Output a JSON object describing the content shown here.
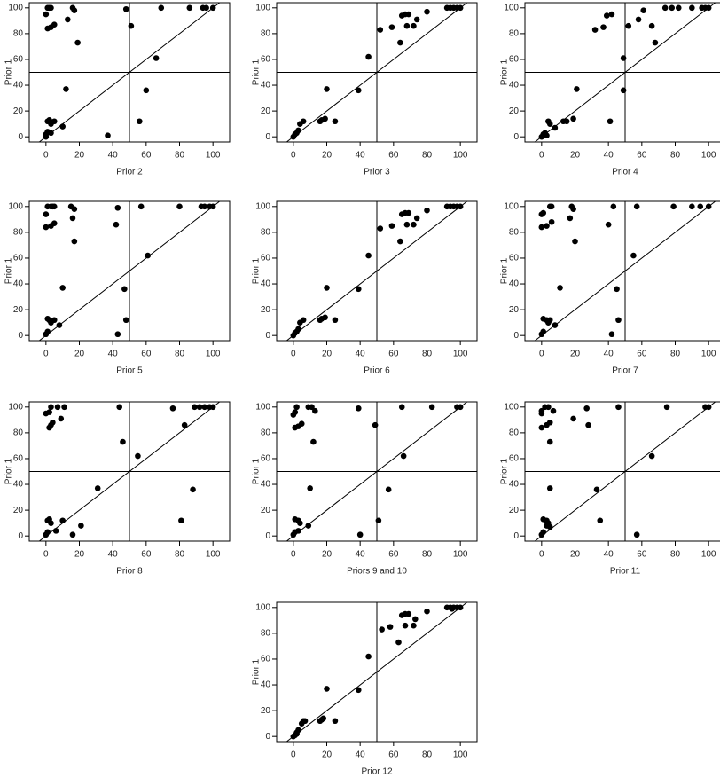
{
  "chart_data": [
    {
      "type": "scatter",
      "x_label": "Prior 2",
      "y_label": "Prior 1",
      "color": "#000000",
      "x": [
        0,
        1,
        2,
        3,
        1,
        3,
        5,
        13,
        16,
        17,
        19,
        12,
        0,
        1,
        1,
        2,
        3,
        5,
        3,
        0,
        10,
        37,
        48,
        51,
        56,
        60,
        66,
        69,
        86,
        94,
        96,
        100
      ],
      "y": [
        95,
        100,
        100,
        100,
        84,
        85,
        87,
        91,
        100,
        98,
        73,
        37,
        2,
        4,
        12,
        13,
        10,
        12,
        3,
        0,
        8,
        1,
        99,
        86,
        12,
        36,
        61,
        100,
        100,
        100,
        100,
        100
      ],
      "xlim": [
        -10,
        110
      ],
      "ylim": [
        -4,
        104
      ],
      "xticks": [
        0,
        20,
        40,
        60,
        80,
        100
      ],
      "yticks": [
        0,
        20,
        40,
        60,
        80,
        100
      ],
      "reference_lines": {
        "x": 50,
        "y": 50,
        "diagonal": true
      }
    },
    {
      "type": "scatter",
      "x_label": "Prior 3",
      "y_label": "Prior 1",
      "color": "#000000",
      "x": [
        0,
        1,
        2,
        3,
        4,
        6,
        16,
        17,
        19,
        20,
        25,
        39,
        45,
        52,
        59,
        64,
        65,
        67,
        69,
        68,
        72,
        74,
        80,
        92,
        94,
        96,
        98,
        100
      ],
      "y": [
        0,
        2,
        3,
        5,
        10,
        12,
        12,
        13,
        14,
        37,
        12,
        36,
        62,
        83,
        85,
        73,
        94,
        95,
        95,
        86,
        86,
        91,
        97,
        100,
        100,
        100,
        100,
        100
      ],
      "xlim": [
        -10,
        110
      ],
      "ylim": [
        -4,
        104
      ],
      "xticks": [
        0,
        20,
        40,
        60,
        80,
        100
      ],
      "yticks": [
        0,
        20,
        40,
        60,
        80,
        100
      ],
      "reference_lines": {
        "x": 50,
        "y": 50,
        "diagonal": true
      }
    },
    {
      "type": "scatter",
      "x_label": "Prior 4",
      "y_label": "Prior 1",
      "color": "#000000",
      "x": [
        0,
        1,
        2,
        3,
        4,
        5,
        8,
        13,
        15,
        19,
        21,
        41,
        49,
        49,
        52,
        32,
        37,
        39,
        42,
        58,
        61,
        66,
        68,
        74,
        78,
        82,
        90,
        96,
        98,
        100
      ],
      "y": [
        0,
        2,
        3,
        1,
        12,
        10,
        7,
        12,
        12,
        14,
        37,
        12,
        61,
        36,
        86,
        83,
        85,
        94,
        95,
        91,
        98,
        86,
        73,
        100,
        100,
        100,
        100,
        100,
        100,
        100
      ],
      "xlim": [
        -10,
        110
      ],
      "ylim": [
        -4,
        104
      ],
      "xticks": [
        0,
        20,
        40,
        60,
        80,
        100
      ],
      "yticks": [
        0,
        20,
        40,
        60,
        80,
        100
      ],
      "reference_lines": {
        "x": 50,
        "y": 50,
        "diagonal": true
      }
    },
    {
      "type": "scatter",
      "x_label": "Prior 5",
      "y_label": "Prior 1",
      "color": "#000000",
      "x": [
        0,
        1,
        3,
        4,
        5,
        0,
        3,
        5,
        15,
        16,
        17,
        17,
        10,
        0,
        1,
        1,
        2,
        3,
        5,
        8,
        42,
        43,
        43,
        47,
        48,
        57,
        61,
        80,
        93,
        95,
        98,
        100
      ],
      "y": [
        94,
        100,
        100,
        100,
        100,
        84,
        85,
        87,
        100,
        91,
        98,
        73,
        37,
        1,
        3,
        13,
        12,
        10,
        12,
        8,
        86,
        99,
        1,
        36,
        12,
        100,
        62,
        100,
        100,
        100,
        100,
        100
      ],
      "xlim": [
        -10,
        110
      ],
      "ylim": [
        -4,
        104
      ],
      "xticks": [
        0,
        20,
        40,
        60,
        80,
        100
      ],
      "yticks": [
        0,
        20,
        40,
        60,
        80,
        100
      ],
      "reference_lines": {
        "x": 50,
        "y": 50,
        "diagonal": true
      }
    },
    {
      "type": "scatter",
      "x_label": "Prior 6",
      "y_label": "Prior 1",
      "color": "#000000",
      "x": [
        0,
        1,
        2,
        3,
        4,
        6,
        16,
        17,
        19,
        20,
        25,
        39,
        45,
        52,
        59,
        64,
        65,
        67,
        69,
        68,
        72,
        74,
        80,
        92,
        94,
        96,
        98,
        100
      ],
      "y": [
        0,
        2,
        3,
        5,
        10,
        12,
        12,
        13,
        14,
        37,
        12,
        36,
        62,
        83,
        85,
        73,
        94,
        95,
        95,
        86,
        86,
        91,
        97,
        100,
        100,
        100,
        100,
        100
      ],
      "xlim": [
        -10,
        110
      ],
      "ylim": [
        -4,
        104
      ],
      "xticks": [
        0,
        20,
        40,
        60,
        80,
        100
      ],
      "yticks": [
        0,
        20,
        40,
        60,
        80,
        100
      ],
      "reference_lines": {
        "x": 50,
        "y": 50,
        "diagonal": true
      }
    },
    {
      "type": "scatter",
      "x_label": "Prior 7",
      "y_label": "Prior 1",
      "color": "#000000",
      "x": [
        0,
        1,
        5,
        6,
        0,
        3,
        6,
        18,
        19,
        17,
        20,
        11,
        0,
        1,
        1,
        3,
        4,
        5,
        8,
        40,
        43,
        42,
        45,
        46,
        57,
        55,
        79,
        90,
        95,
        100
      ],
      "y": [
        94,
        95,
        100,
        100,
        84,
        85,
        88,
        100,
        98,
        91,
        73,
        37,
        1,
        3,
        13,
        12,
        10,
        12,
        8,
        86,
        100,
        1,
        36,
        12,
        100,
        62,
        100,
        100,
        100,
        100
      ],
      "xlim": [
        -10,
        110
      ],
      "ylim": [
        -4,
        104
      ],
      "xticks": [
        0,
        20,
        40,
        60,
        80,
        100
      ],
      "yticks": [
        0,
        20,
        40,
        60,
        80,
        100
      ],
      "reference_lines": {
        "x": 50,
        "y": 50,
        "diagonal": true
      }
    },
    {
      "type": "scatter",
      "x_label": "Prior 8",
      "y_label": "Prior 1",
      "color": "#000000",
      "x": [
        0,
        2,
        3,
        7,
        11,
        2,
        3,
        4,
        9,
        44,
        46,
        55,
        76,
        83,
        89,
        92,
        95,
        98,
        100,
        31,
        88,
        81,
        0,
        1,
        1,
        2,
        3,
        6,
        10,
        16,
        21
      ],
      "y": [
        95,
        96,
        100,
        100,
        100,
        84,
        86,
        88,
        91,
        100,
        73,
        62,
        99,
        86,
        100,
        100,
        100,
        100,
        100,
        37,
        36,
        12,
        1,
        3,
        12,
        13,
        10,
        4,
        12,
        1,
        8
      ],
      "xlim": [
        -10,
        110
      ],
      "ylim": [
        -4,
        104
      ],
      "xticks": [
        0,
        20,
        40,
        60,
        80,
        100
      ],
      "yticks": [
        0,
        20,
        40,
        60,
        80,
        100
      ],
      "reference_lines": {
        "x": 50,
        "y": 50,
        "diagonal": true
      }
    },
    {
      "type": "scatter",
      "x_label": "Priors 9 and 10",
      "y_label": "Prior 1",
      "color": "#000000",
      "x": [
        0,
        1,
        2,
        9,
        11,
        13,
        1,
        3,
        5,
        12,
        10,
        39,
        49,
        57,
        51,
        66,
        40,
        65,
        83,
        98,
        100,
        0,
        1,
        1,
        3,
        4,
        3,
        9
      ],
      "y": [
        94,
        96,
        100,
        100,
        100,
        97,
        84,
        85,
        87,
        73,
        37,
        99,
        86,
        36,
        12,
        62,
        1,
        100,
        100,
        100,
        100,
        1,
        3,
        13,
        12,
        10,
        4,
        8
      ],
      "xlim": [
        -10,
        110
      ],
      "ylim": [
        -4,
        104
      ],
      "xticks": [
        0,
        20,
        40,
        60,
        80,
        100
      ],
      "yticks": [
        0,
        20,
        40,
        60,
        80,
        100
      ],
      "reference_lines": {
        "x": 50,
        "y": 50,
        "diagonal": true
      }
    },
    {
      "type": "scatter",
      "x_label": "Prior 11",
      "y_label": "Prior 1",
      "color": "#000000",
      "x": [
        0,
        0,
        2,
        4,
        7,
        0,
        3,
        5,
        5,
        19,
        27,
        28,
        46,
        75,
        98,
        100,
        5,
        33,
        35,
        66,
        57,
        0,
        1,
        1,
        3,
        4,
        3,
        5
      ],
      "y": [
        95,
        97,
        100,
        100,
        97,
        84,
        86,
        88,
        73,
        91,
        99,
        86,
        100,
        100,
        100,
        100,
        37,
        36,
        12,
        62,
        1,
        1,
        3,
        13,
        12,
        10,
        8,
        7
      ],
      "xlim": [
        -10,
        110
      ],
      "ylim": [
        -4,
        104
      ],
      "xticks": [
        0,
        20,
        40,
        60,
        80,
        100
      ],
      "yticks": [
        0,
        20,
        40,
        60,
        80,
        100
      ],
      "reference_lines": {
        "x": 50,
        "y": 50,
        "diagonal": true
      }
    },
    {
      "type": "scatter",
      "x_label": "Prior 12",
      "y_label": "Prior 1",
      "color": "#000000",
      "x": [
        0,
        1,
        2,
        2,
        3,
        5,
        6,
        7,
        16,
        17,
        18,
        20,
        25,
        39,
        45,
        53,
        58,
        63,
        65,
        67,
        69,
        67,
        72,
        73,
        80,
        92,
        94,
        96,
        98,
        100,
        95
      ],
      "y": [
        0,
        1,
        2,
        3,
        5,
        10,
        12,
        12,
        12,
        13,
        14,
        37,
        12,
        36,
        62,
        83,
        85,
        73,
        94,
        95,
        95,
        86,
        86,
        91,
        97,
        100,
        100,
        100,
        100,
        100,
        99
      ],
      "xlim": [
        -10,
        110
      ],
      "ylim": [
        -4,
        104
      ],
      "xticks": [
        0,
        20,
        40,
        60,
        80,
        100
      ],
      "yticks": [
        0,
        20,
        40,
        60,
        80,
        100
      ],
      "reference_lines": {
        "x": 50,
        "y": 50,
        "diagonal": true
      }
    }
  ]
}
